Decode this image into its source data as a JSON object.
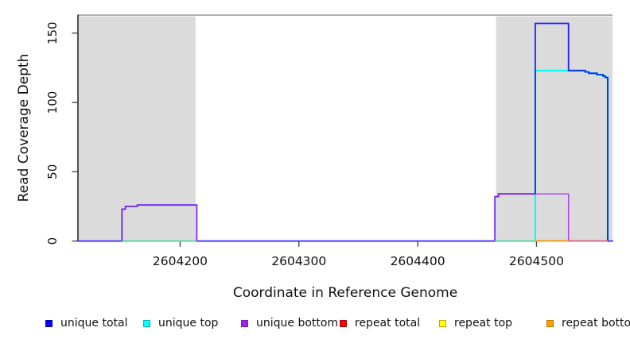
{
  "figure": {
    "background": "#FFFFFF",
    "text_color": "#000000",
    "axis_color": "#2B2B2B",
    "tick_color": "#3A3A3A"
  },
  "chart_data": {
    "type": "line",
    "subtype": "step-coverage",
    "title": "",
    "xlabel": "Coordinate in Reference Genome",
    "ylabel": "Read Coverage Depth",
    "xlim": [
      2604114,
      2604564
    ],
    "ylim": [
      0,
      163
    ],
    "xticks": [
      2604200,
      2604300,
      2604400,
      2604500
    ],
    "yticks": [
      0,
      50,
      100,
      150
    ],
    "grid": false,
    "legend_position": "bottom",
    "shaded_regions": [
      {
        "x0": 2604114,
        "x1": 2604213,
        "fill": "#DBDBDB"
      },
      {
        "x0": 2604466,
        "x1": 2604564,
        "fill": "#DBDBDB"
      }
    ],
    "top_boundary": {
      "y": 163,
      "color": "#969696"
    },
    "series": [
      {
        "label": "unique total",
        "color": "#0000FF",
        "swatch_border": "#0000B3",
        "draw_order": 4,
        "steps": [
          [
            2604114,
            0
          ],
          [
            2604151,
            0
          ],
          [
            2604151,
            23
          ],
          [
            2604154,
            23
          ],
          [
            2604154,
            25
          ],
          [
            2604164,
            25
          ],
          [
            2604164,
            26
          ],
          [
            2604214,
            26
          ],
          [
            2604214,
            0
          ],
          [
            2604465,
            0
          ],
          [
            2604465,
            32
          ],
          [
            2604468,
            32
          ],
          [
            2604468,
            34
          ],
          [
            2604499,
            34
          ],
          [
            2604499,
            157
          ],
          [
            2604527,
            157
          ],
          [
            2604527,
            123
          ],
          [
            2604541,
            123
          ],
          [
            2604541,
            122
          ],
          [
            2604544,
            122
          ],
          [
            2604544,
            121
          ],
          [
            2604551,
            121
          ],
          [
            2604551,
            120
          ],
          [
            2604556,
            120
          ],
          [
            2604556,
            119
          ],
          [
            2604558,
            119
          ],
          [
            2604558,
            118
          ],
          [
            2604560,
            118
          ],
          [
            2604560,
            0
          ],
          [
            2604564,
            0
          ]
        ]
      },
      {
        "label": "unique top",
        "color": "#00FFFF",
        "swatch_border": "#00B3B3",
        "draw_order": 3,
        "steps": [
          [
            2604114,
            0
          ],
          [
            2604499,
            0
          ],
          [
            2604499,
            123
          ],
          [
            2604541,
            123
          ],
          [
            2604541,
            122
          ],
          [
            2604544,
            122
          ],
          [
            2604544,
            121
          ],
          [
            2604551,
            121
          ],
          [
            2604551,
            120
          ],
          [
            2604556,
            120
          ],
          [
            2604556,
            119
          ],
          [
            2604558,
            119
          ],
          [
            2604558,
            118
          ],
          [
            2604560,
            118
          ],
          [
            2604560,
            0
          ],
          [
            2604564,
            0
          ]
        ]
      },
      {
        "label": "unique bottom",
        "color": "#A020F0",
        "swatch_border": "#7A1BB8",
        "draw_order": 5,
        "steps": [
          [
            2604114,
            0
          ],
          [
            2604151,
            0
          ],
          [
            2604151,
            23
          ],
          [
            2604154,
            23
          ],
          [
            2604154,
            25
          ],
          [
            2604164,
            25
          ],
          [
            2604164,
            26
          ],
          [
            2604214,
            26
          ],
          [
            2604214,
            0
          ],
          [
            2604465,
            0
          ],
          [
            2604465,
            32
          ],
          [
            2604468,
            32
          ],
          [
            2604468,
            34
          ],
          [
            2604527,
            34
          ],
          [
            2604527,
            0
          ],
          [
            2604564,
            0
          ]
        ]
      },
      {
        "label": "repeat total",
        "color": "#FF0000",
        "swatch_border": "#B30000",
        "draw_order": 0,
        "steps": [
          [
            2604114,
            0
          ],
          [
            2604564,
            0
          ]
        ]
      },
      {
        "label": "repeat top",
        "color": "#FFFF00",
        "swatch_border": "#B3B300",
        "draw_order": 1,
        "steps": [
          [
            2604114,
            0
          ],
          [
            2604564,
            0
          ]
        ]
      },
      {
        "label": "repeat bottom",
        "color": "#FFA500",
        "swatch_border": "#B87400",
        "draw_order": 2,
        "steps": [
          [
            2604114,
            0
          ],
          [
            2604564,
            0
          ]
        ]
      }
    ],
    "baseline_overlap_segments": [
      {
        "x0": 2604151,
        "x1": 2604214,
        "color": "#7FCC88"
      },
      {
        "x0": 2604465,
        "x1": 2604499,
        "color": "#7FCC88"
      },
      {
        "x0": 2604499,
        "x1": 2604527,
        "color": "#FFA500"
      },
      {
        "x0": 2604527,
        "x1": 2604560,
        "color": "#E87090"
      }
    ]
  }
}
